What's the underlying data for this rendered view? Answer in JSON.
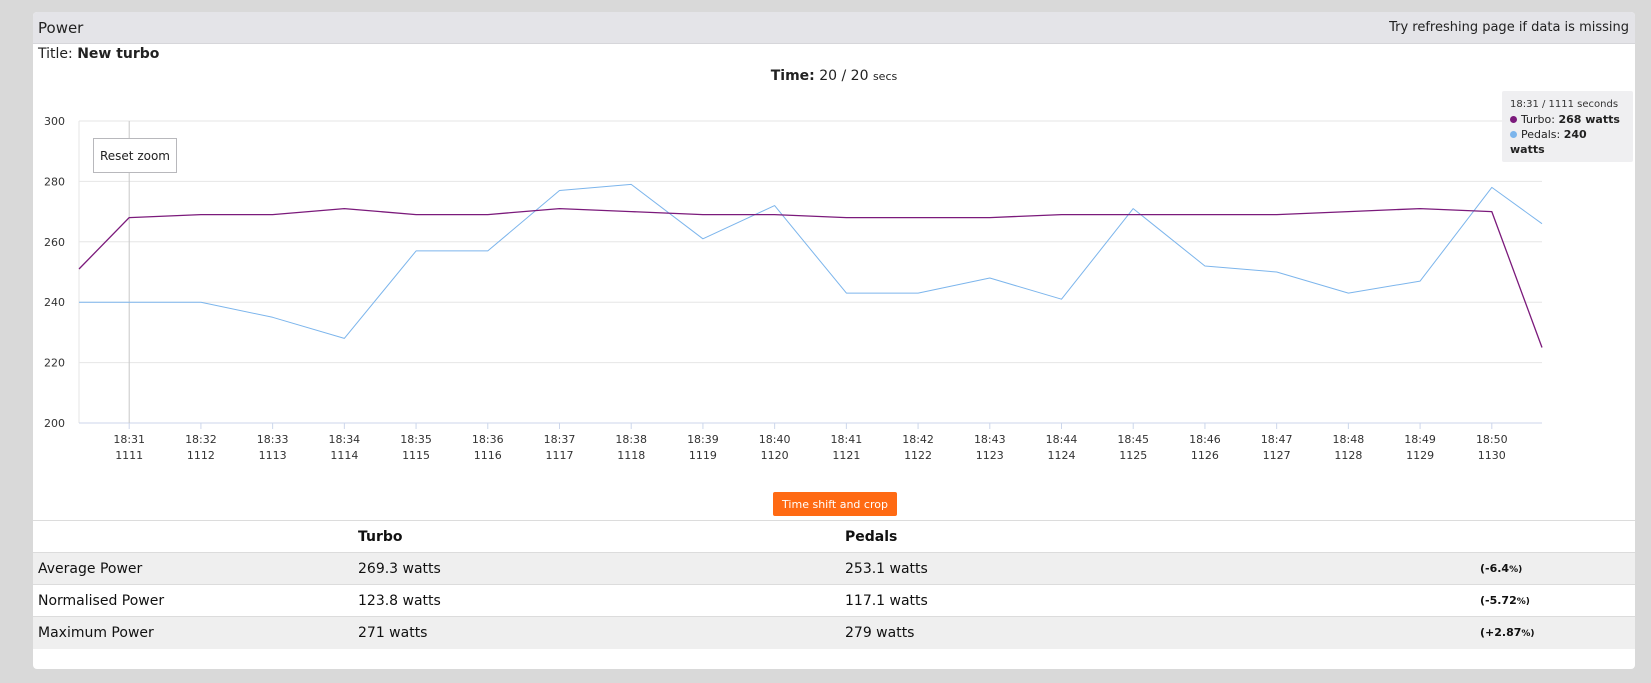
{
  "header": {
    "title": "Power",
    "note": "Try refreshing page if data is missing"
  },
  "session": {
    "title_label": "Title:",
    "title_value": "New turbo",
    "time_label": "Time:",
    "time_value": "20 /",
    "time_total": "20",
    "time_unit": "secs"
  },
  "tooltip": {
    "header": "18:31 / 1111 seconds",
    "turbo_label": "Turbo:",
    "turbo_value": "268 watts",
    "pedals_label": "Pedals:",
    "pedals_value": "240 watts"
  },
  "buttons": {
    "reset_zoom": "Reset zoom",
    "time_shift": "Time shift and crop"
  },
  "colors": {
    "turbo": "#7b1a7b",
    "pedals": "#7cb5ec",
    "accent": "#ff6a13"
  },
  "chart_data": {
    "type": "line",
    "x_clock": [
      "18:31",
      "18:32",
      "18:33",
      "18:34",
      "18:35",
      "18:36",
      "18:37",
      "18:38",
      "18:39",
      "18:40",
      "18:41",
      "18:42",
      "18:43",
      "18:44",
      "18:45",
      "18:46",
      "18:47",
      "18:48",
      "18:49",
      "18:50"
    ],
    "x_seconds": [
      "1111",
      "1112",
      "1113",
      "1114",
      "1115",
      "1116",
      "1117",
      "1118",
      "1119",
      "1120",
      "1121",
      "1122",
      "1123",
      "1124",
      "1125",
      "1126",
      "1127",
      "1128",
      "1129",
      "1130"
    ],
    "x_range": [
      1110.3,
      1130.7
    ],
    "y_ticks": [
      200,
      220,
      240,
      260,
      280,
      300
    ],
    "ylim": [
      200,
      300
    ],
    "series": [
      {
        "name": "Turbo",
        "points": [
          [
            1110.3,
            251
          ],
          [
            1111,
            268
          ],
          [
            1112,
            269
          ],
          [
            1113,
            269
          ],
          [
            1114,
            271
          ],
          [
            1115,
            269
          ],
          [
            1116,
            269
          ],
          [
            1117,
            271
          ],
          [
            1118,
            270
          ],
          [
            1119,
            269
          ],
          [
            1120,
            269
          ],
          [
            1121,
            268
          ],
          [
            1122,
            268
          ],
          [
            1123,
            268
          ],
          [
            1124,
            269
          ],
          [
            1125,
            269
          ],
          [
            1126,
            269
          ],
          [
            1127,
            269
          ],
          [
            1128,
            270
          ],
          [
            1129,
            271
          ],
          [
            1130,
            270
          ],
          [
            1130.7,
            225
          ]
        ]
      },
      {
        "name": "Pedals",
        "points": [
          [
            1110.3,
            240
          ],
          [
            1111,
            240
          ],
          [
            1112,
            240
          ],
          [
            1113,
            235
          ],
          [
            1114,
            228
          ],
          [
            1115,
            257
          ],
          [
            1116,
            257
          ],
          [
            1117,
            277
          ],
          [
            1118,
            279
          ],
          [
            1119,
            261
          ],
          [
            1120,
            272
          ],
          [
            1121,
            243
          ],
          [
            1122,
            243
          ],
          [
            1123,
            248
          ],
          [
            1124,
            241
          ],
          [
            1125,
            271
          ],
          [
            1126,
            252
          ],
          [
            1127,
            250
          ],
          [
            1128,
            243
          ],
          [
            1129,
            247
          ],
          [
            1130,
            278
          ],
          [
            1130.7,
            266
          ]
        ]
      }
    ],
    "crosshair_x": 1111
  },
  "stats": {
    "headers": [
      "",
      "Turbo",
      "Pedals",
      ""
    ],
    "rows": [
      {
        "label": "Average Power",
        "turbo": "269.3 watts",
        "pedals": "253.1 watts",
        "diff": "(-6.4",
        "pct": "%)"
      },
      {
        "label": "Normalised Power",
        "turbo": "123.8 watts",
        "pedals": "117.1 watts",
        "diff": "(-5.72",
        "pct": "%)"
      },
      {
        "label": "Maximum Power",
        "turbo": "271 watts",
        "pedals": "279 watts",
        "diff": "(+2.87",
        "pct": "%)"
      }
    ]
  }
}
